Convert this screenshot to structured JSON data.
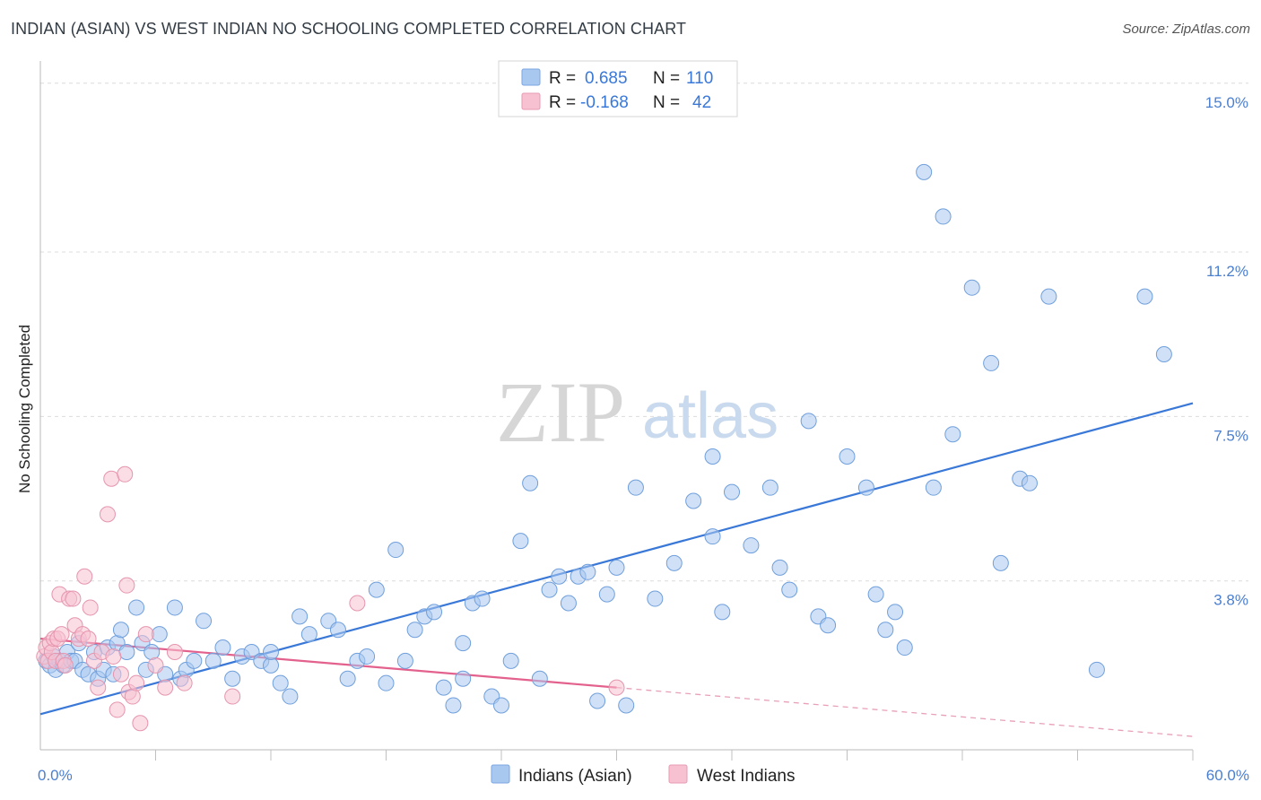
{
  "header": {
    "title": "INDIAN (ASIAN) VS WEST INDIAN NO SCHOOLING COMPLETED CORRELATION CHART",
    "source": "Source: ZipAtlas.com"
  },
  "watermark": {
    "zip": "ZIP",
    "atlas": "atlas"
  },
  "legend_box": {
    "rows": [
      {
        "r_label": "R =",
        "r_value": "0.685",
        "n_label": "N =",
        "n_value": "110",
        "color": "#a9c8f0",
        "border": "#7aa6e0"
      },
      {
        "r_label": "R =",
        "r_value": "-0.168",
        "n_label": "N =",
        "n_value": "42",
        "color": "#f7c1d2",
        "border": "#e89ab3"
      }
    ]
  },
  "chart_data": {
    "type": "scatter",
    "title": "INDIAN (ASIAN) VS WEST INDIAN NO SCHOOLING COMPLETED CORRELATION CHART",
    "xlabel": "",
    "ylabel": "No Schooling Completed",
    "xlim": [
      0,
      60
    ],
    "ylim": [
      0,
      15.5
    ],
    "x_tick_labels": [
      {
        "value": 0,
        "label": "0.0%"
      },
      {
        "value": 60,
        "label": "60.0%"
      }
    ],
    "y_ticks": [
      {
        "value": 3.8,
        "label": "3.8%"
      },
      {
        "value": 7.5,
        "label": "7.5%"
      },
      {
        "value": 11.2,
        "label": "11.2%"
      },
      {
        "value": 15.0,
        "label": "15.0%"
      }
    ],
    "grid": true,
    "legend_position": "bottom-center",
    "series": [
      {
        "name": "Indians (Asian)",
        "color": "#a9c8f0",
        "stroke": "#6f9fdc",
        "r": 0.685,
        "n": 110,
        "trend": {
          "x": [
            0,
            60
          ],
          "y": [
            0.8,
            7.8
          ],
          "color": "#3a78d8"
        },
        "points": [
          [
            0.3,
            2.0
          ],
          [
            0.5,
            1.9
          ],
          [
            0.7,
            2.1
          ],
          [
            0.8,
            1.8
          ],
          [
            1.0,
            2.0
          ],
          [
            1.2,
            1.9
          ],
          [
            1.4,
            2.2
          ],
          [
            1.6,
            2.0
          ],
          [
            1.8,
            2.0
          ],
          [
            2.0,
            2.4
          ],
          [
            2.2,
            1.8
          ],
          [
            2.5,
            1.7
          ],
          [
            2.8,
            2.2
          ],
          [
            3.0,
            1.6
          ],
          [
            3.3,
            1.8
          ],
          [
            3.5,
            2.3
          ],
          [
            3.8,
            1.7
          ],
          [
            4.0,
            2.4
          ],
          [
            4.2,
            2.7
          ],
          [
            4.5,
            2.2
          ],
          [
            5.0,
            3.2
          ],
          [
            5.3,
            2.4
          ],
          [
            5.5,
            1.8
          ],
          [
            5.8,
            2.2
          ],
          [
            6.2,
            2.6
          ],
          [
            6.5,
            1.7
          ],
          [
            7.0,
            3.2
          ],
          [
            7.3,
            1.6
          ],
          [
            7.6,
            1.8
          ],
          [
            8.0,
            2.0
          ],
          [
            8.5,
            2.9
          ],
          [
            9.0,
            2.0
          ],
          [
            9.5,
            2.3
          ],
          [
            10.0,
            1.6
          ],
          [
            10.5,
            2.1
          ],
          [
            11.0,
            2.2
          ],
          [
            11.5,
            2.0
          ],
          [
            12.0,
            1.9
          ],
          [
            12.5,
            1.5
          ],
          [
            13.0,
            1.2
          ],
          [
            13.5,
            3.0
          ],
          [
            14.0,
            2.6
          ],
          [
            15.0,
            2.9
          ],
          [
            15.5,
            2.7
          ],
          [
            16.0,
            1.6
          ],
          [
            16.5,
            2.0
          ],
          [
            17.0,
            2.1
          ],
          [
            17.5,
            3.6
          ],
          [
            18.0,
            1.5
          ],
          [
            18.5,
            4.5
          ],
          [
            19.0,
            2.0
          ],
          [
            19.5,
            2.7
          ],
          [
            20.0,
            3.0
          ],
          [
            20.5,
            3.1
          ],
          [
            21.0,
            1.4
          ],
          [
            21.5,
            1.0
          ],
          [
            22.0,
            1.6
          ],
          [
            22.5,
            3.3
          ],
          [
            23.0,
            3.4
          ],
          [
            23.5,
            1.2
          ],
          [
            24.0,
            1.0
          ],
          [
            24.5,
            2.0
          ],
          [
            25.0,
            4.7
          ],
          [
            25.5,
            6.0
          ],
          [
            26.0,
            1.6
          ],
          [
            26.5,
            3.6
          ],
          [
            27.0,
            3.9
          ],
          [
            27.5,
            3.3
          ],
          [
            28.0,
            3.9
          ],
          [
            28.5,
            4.0
          ],
          [
            29.0,
            1.1
          ],
          [
            29.5,
            3.5
          ],
          [
            30.0,
            4.1
          ],
          [
            30.5,
            1.0
          ],
          [
            31.0,
            5.9
          ],
          [
            32.0,
            3.4
          ],
          [
            33.0,
            4.2
          ],
          [
            34.0,
            5.6
          ],
          [
            35.0,
            4.8
          ],
          [
            35.5,
            3.1
          ],
          [
            36.0,
            5.8
          ],
          [
            37.0,
            4.6
          ],
          [
            38.0,
            5.9
          ],
          [
            38.5,
            4.1
          ],
          [
            39.0,
            3.6
          ],
          [
            40.0,
            7.4
          ],
          [
            40.5,
            3.0
          ],
          [
            41.0,
            2.8
          ],
          [
            42.0,
            6.6
          ],
          [
            43.0,
            5.9
          ],
          [
            43.5,
            3.5
          ],
          [
            44.0,
            2.7
          ],
          [
            44.5,
            3.1
          ],
          [
            45.0,
            2.3
          ],
          [
            46.0,
            13.0
          ],
          [
            46.5,
            5.9
          ],
          [
            47.0,
            12.0
          ],
          [
            47.5,
            7.1
          ],
          [
            48.5,
            10.4
          ],
          [
            49.5,
            8.7
          ],
          [
            50.0,
            4.2
          ],
          [
            51.0,
            6.1
          ],
          [
            51.5,
            6.0
          ],
          [
            52.5,
            10.2
          ],
          [
            55.0,
            1.8
          ],
          [
            57.5,
            10.2
          ],
          [
            58.5,
            8.9
          ],
          [
            35.0,
            6.6
          ],
          [
            22.0,
            2.4
          ],
          [
            12.0,
            2.2
          ]
        ]
      },
      {
        "name": "West Indians",
        "color": "#f7c1d2",
        "stroke": "#e595ae",
        "r": -0.168,
        "n": 42,
        "trend": {
          "x": [
            0,
            30.0
          ],
          "y": [
            2.5,
            1.4
          ],
          "color": "#e3618d"
        },
        "trend_extension": {
          "x": [
            30.0,
            60
          ],
          "y": [
            1.4,
            0.3
          ],
          "color": "#e8a0b8"
        },
        "points": [
          [
            0.2,
            2.1
          ],
          [
            0.3,
            2.3
          ],
          [
            0.4,
            2.0
          ],
          [
            0.5,
            2.4
          ],
          [
            0.6,
            2.2
          ],
          [
            0.7,
            2.5
          ],
          [
            0.8,
            2.0
          ],
          [
            0.9,
            2.5
          ],
          [
            1.0,
            3.5
          ],
          [
            1.1,
            2.6
          ],
          [
            1.2,
            2.0
          ],
          [
            1.3,
            1.9
          ],
          [
            1.5,
            3.4
          ],
          [
            1.7,
            3.4
          ],
          [
            1.8,
            2.8
          ],
          [
            2.0,
            2.5
          ],
          [
            2.2,
            2.6
          ],
          [
            2.3,
            3.9
          ],
          [
            2.5,
            2.5
          ],
          [
            2.6,
            3.2
          ],
          [
            2.8,
            2.0
          ],
          [
            3.0,
            1.4
          ],
          [
            3.2,
            2.2
          ],
          [
            3.5,
            5.3
          ],
          [
            3.7,
            6.1
          ],
          [
            3.8,
            2.1
          ],
          [
            4.0,
            0.9
          ],
          [
            4.2,
            1.7
          ],
          [
            4.4,
            6.2
          ],
          [
            4.5,
            3.7
          ],
          [
            4.6,
            1.3
          ],
          [
            4.8,
            1.2
          ],
          [
            5.0,
            1.5
          ],
          [
            5.2,
            0.6
          ],
          [
            5.5,
            2.6
          ],
          [
            6.0,
            1.9
          ],
          [
            6.5,
            1.4
          ],
          [
            7.0,
            2.2
          ],
          [
            7.5,
            1.5
          ],
          [
            10.0,
            1.2
          ],
          [
            16.5,
            3.3
          ],
          [
            30.0,
            1.4
          ]
        ]
      }
    ]
  }
}
